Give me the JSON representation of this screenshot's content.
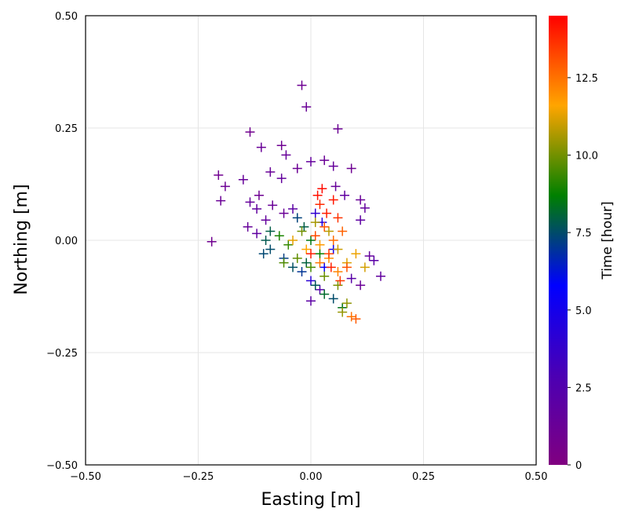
{
  "chart_data": {
    "type": "scatter",
    "xlabel": "Easting [m]",
    "ylabel": "Northing [m]",
    "xlim": [
      -0.5,
      0.5
    ],
    "ylim": [
      -0.5,
      0.5
    ],
    "xticks": [
      -0.5,
      -0.25,
      0.0,
      0.25,
      0.5
    ],
    "yticks": [
      -0.5,
      -0.25,
      0.0,
      0.25,
      0.5
    ],
    "xtick_labels": [
      "−0.50",
      "−0.25",
      "0.00",
      "0.25",
      "0.50"
    ],
    "ytick_labels": [
      "−0.50",
      "−0.25",
      "0.00",
      "0.25",
      "0.50"
    ],
    "grid": true,
    "marker": "+",
    "colorbar": {
      "label": "Time [hour]",
      "range": [
        0,
        14.5
      ],
      "ticks": [
        0,
        2.5,
        5.0,
        7.5,
        10.0,
        12.5
      ],
      "tick_labels": [
        "0",
        "2.5",
        "5.0",
        "7.5",
        "10.0",
        "12.5"
      ],
      "colormap_stops": [
        "#800080",
        "#4b00b4",
        "#0000ff",
        "#008000",
        "#ffa500",
        "#ff0000"
      ]
    },
    "points": [
      {
        "x": -0.02,
        "y": 0.345,
        "t": 1.0
      },
      {
        "x": -0.01,
        "y": 0.297,
        "t": 1.2
      },
      {
        "x": 0.06,
        "y": 0.248,
        "t": 1.1
      },
      {
        "x": -0.135,
        "y": 0.241,
        "t": 0.8
      },
      {
        "x": -0.11,
        "y": 0.207,
        "t": 1.3
      },
      {
        "x": -0.065,
        "y": 0.211,
        "t": 1.0
      },
      {
        "x": -0.055,
        "y": 0.19,
        "t": 1.4
      },
      {
        "x": -0.03,
        "y": 0.16,
        "t": 1.1
      },
      {
        "x": 0.0,
        "y": 0.175,
        "t": 1.6
      },
      {
        "x": 0.03,
        "y": 0.178,
        "t": 1.2
      },
      {
        "x": 0.05,
        "y": 0.165,
        "t": 1.5
      },
      {
        "x": 0.09,
        "y": 0.16,
        "t": 1.0
      },
      {
        "x": -0.09,
        "y": 0.152,
        "t": 1.3
      },
      {
        "x": -0.065,
        "y": 0.138,
        "t": 1.6
      },
      {
        "x": -0.205,
        "y": 0.145,
        "t": 0.9
      },
      {
        "x": -0.19,
        "y": 0.12,
        "t": 1.1
      },
      {
        "x": -0.15,
        "y": 0.135,
        "t": 1.4
      },
      {
        "x": -0.2,
        "y": 0.088,
        "t": 1.2
      },
      {
        "x": -0.135,
        "y": 0.085,
        "t": 1.5
      },
      {
        "x": -0.115,
        "y": 0.1,
        "t": 1.0
      },
      {
        "x": -0.12,
        "y": 0.07,
        "t": 1.7
      },
      {
        "x": -0.085,
        "y": 0.078,
        "t": 1.3
      },
      {
        "x": -0.22,
        "y": -0.003,
        "t": 0.9
      },
      {
        "x": -0.14,
        "y": 0.03,
        "t": 1.4
      },
      {
        "x": -0.12,
        "y": 0.015,
        "t": 1.8
      },
      {
        "x": -0.1,
        "y": 0.045,
        "t": 1.6
      },
      {
        "x": -0.06,
        "y": 0.06,
        "t": 1.2
      },
      {
        "x": -0.04,
        "y": 0.07,
        "t": 2.0
      },
      {
        "x": 0.055,
        "y": 0.12,
        "t": 1.4
      },
      {
        "x": 0.075,
        "y": 0.1,
        "t": 1.8
      },
      {
        "x": 0.11,
        "y": 0.09,
        "t": 1.3
      },
      {
        "x": 0.12,
        "y": 0.072,
        "t": 1.6
      },
      {
        "x": 0.11,
        "y": 0.045,
        "t": 1.9
      },
      {
        "x": 0.13,
        "y": -0.035,
        "t": 1.5
      },
      {
        "x": 0.14,
        "y": -0.045,
        "t": 2.1
      },
      {
        "x": 0.155,
        "y": -0.08,
        "t": 1.7
      },
      {
        "x": 0.11,
        "y": -0.1,
        "t": 1.2
      },
      {
        "x": 0.09,
        "y": -0.085,
        "t": 2.2
      },
      {
        "x": 0.0,
        "y": -0.135,
        "t": 2.0
      },
      {
        "x": 0.02,
        "y": -0.11,
        "t": 2.4
      },
      {
        "x": 0.01,
        "y": 0.06,
        "t": 4.0
      },
      {
        "x": 0.025,
        "y": 0.04,
        "t": 4.6
      },
      {
        "x": 0.0,
        "y": -0.09,
        "t": 4.2
      },
      {
        "x": 0.05,
        "y": -0.02,
        "t": 5.0
      },
      {
        "x": 0.03,
        "y": -0.06,
        "t": 5.5
      },
      {
        "x": -0.06,
        "y": -0.04,
        "t": 7.2
      },
      {
        "x": -0.09,
        "y": -0.02,
        "t": 7.5
      },
      {
        "x": -0.1,
        "y": 0.0,
        "t": 7.8
      },
      {
        "x": -0.105,
        "y": -0.03,
        "t": 7.4
      },
      {
        "x": -0.09,
        "y": 0.02,
        "t": 7.9
      },
      {
        "x": -0.04,
        "y": -0.06,
        "t": 7.6
      },
      {
        "x": -0.02,
        "y": -0.07,
        "t": 7.0
      },
      {
        "x": -0.01,
        "y": -0.05,
        "t": 8.0
      },
      {
        "x": 0.01,
        "y": -0.1,
        "t": 7.7
      },
      {
        "x": 0.03,
        "y": -0.12,
        "t": 8.2
      },
      {
        "x": 0.05,
        "y": -0.13,
        "t": 7.5
      },
      {
        "x": 0.07,
        "y": -0.15,
        "t": 8.4
      },
      {
        "x": -0.03,
        "y": 0.05,
        "t": 7.3
      },
      {
        "x": -0.015,
        "y": 0.03,
        "t": 7.9
      },
      {
        "x": 0.0,
        "y": 0.0,
        "t": 8.5
      },
      {
        "x": 0.02,
        "y": -0.03,
        "t": 8.8
      },
      {
        "x": -0.07,
        "y": 0.01,
        "t": 9.0
      },
      {
        "x": -0.05,
        "y": -0.01,
        "t": 9.3
      },
      {
        "x": -0.06,
        "y": -0.05,
        "t": 9.6
      },
      {
        "x": -0.03,
        "y": -0.04,
        "t": 9.8
      },
      {
        "x": 0.0,
        "y": -0.06,
        "t": 9.5
      },
      {
        "x": 0.03,
        "y": -0.08,
        "t": 9.9
      },
      {
        "x": 0.06,
        "y": -0.1,
        "t": 10.1
      },
      {
        "x": 0.08,
        "y": -0.14,
        "t": 10.3
      },
      {
        "x": 0.07,
        "y": -0.16,
        "t": 10.4
      },
      {
        "x": -0.02,
        "y": 0.02,
        "t": 10.0
      },
      {
        "x": 0.01,
        "y": 0.04,
        "t": 10.6
      },
      {
        "x": 0.04,
        "y": 0.02,
        "t": 10.8
      },
      {
        "x": 0.06,
        "y": -0.02,
        "t": 11.0
      },
      {
        "x": 0.08,
        "y": -0.05,
        "t": 11.2
      },
      {
        "x": 0.1,
        "y": -0.03,
        "t": 11.4
      },
      {
        "x": 0.12,
        "y": -0.06,
        "t": 11.1
      },
      {
        "x": -0.04,
        "y": 0.0,
        "t": 11.3
      },
      {
        "x": -0.01,
        "y": -0.02,
        "t": 11.6
      },
      {
        "x": 0.02,
        "y": -0.01,
        "t": 11.8
      },
      {
        "x": 0.04,
        "y": -0.04,
        "t": 12.0
      },
      {
        "x": 0.06,
        "y": -0.07,
        "t": 12.2
      },
      {
        "x": 0.02,
        "y": -0.05,
        "t": 12.4
      },
      {
        "x": 0.05,
        "y": 0.0,
        "t": 12.6
      },
      {
        "x": 0.07,
        "y": 0.02,
        "t": 12.8
      },
      {
        "x": 0.03,
        "y": 0.03,
        "t": 13.0
      },
      {
        "x": 0.01,
        "y": 0.01,
        "t": 13.2
      },
      {
        "x": 0.04,
        "y": -0.03,
        "t": 13.4
      },
      {
        "x": 0.06,
        "y": 0.05,
        "t": 13.6
      },
      {
        "x": 0.02,
        "y": 0.08,
        "t": 13.8
      },
      {
        "x": 0.035,
        "y": 0.06,
        "t": 14.0
      },
      {
        "x": 0.05,
        "y": 0.09,
        "t": 14.1
      },
      {
        "x": 0.015,
        "y": 0.1,
        "t": 14.2
      },
      {
        "x": 0.025,
        "y": 0.115,
        "t": 14.3
      },
      {
        "x": 0.0,
        "y": -0.03,
        "t": 14.0
      },
      {
        "x": 0.045,
        "y": -0.06,
        "t": 13.9
      },
      {
        "x": 0.065,
        "y": -0.09,
        "t": 13.5
      },
      {
        "x": 0.08,
        "y": -0.06,
        "t": 13.1
      },
      {
        "x": 0.09,
        "y": -0.17,
        "t": 12.5
      },
      {
        "x": 0.1,
        "y": -0.175,
        "t": 12.9
      }
    ]
  }
}
